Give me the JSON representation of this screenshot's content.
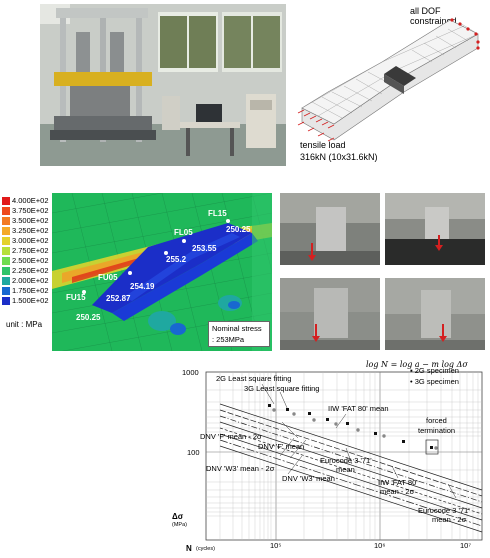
{
  "mesh_panel": {
    "top_label": "all DOF constrained",
    "load_label": "tensile load",
    "load_value": "316kN (10x31.6kN)"
  },
  "contour": {
    "legend": [
      "4.000E+02",
      "3.750E+02",
      "3.500E+02",
      "3.250E+02",
      "3.000E+02",
      "2.750E+02",
      "2.500E+02",
      "2.250E+02",
      "2.000E+02",
      "1.750E+02",
      "1.500E+02"
    ],
    "legend_colors": [
      "#e11a1a",
      "#ee4a1c",
      "#f27a22",
      "#f4a928",
      "#e3d12c",
      "#b7e03a",
      "#6fdc50",
      "#2fc46a",
      "#1fa8a0",
      "#1868d0",
      "#1b2ec8"
    ],
    "unit": "unit : MPa",
    "points": [
      {
        "id": "FL15",
        "value": "250.25"
      },
      {
        "id": "FL05",
        "value": "253.55"
      },
      {
        "id": "center",
        "value": "255.2"
      },
      {
        "id": "FU05",
        "value": "254.19"
      },
      {
        "id": "FU05_b",
        "value": "252.87"
      },
      {
        "id": "FU15",
        "value": "250.25"
      }
    ],
    "point_labels": {
      "fl15": "FL15",
      "fl05": "FL05",
      "fu05": "FU05",
      "fu15": "FU15"
    },
    "nominal_line1": "Nominal stress",
    "nominal_line2": ": 253MPa"
  },
  "sn_chart": {
    "formula": "log N = log a − m log Δσ",
    "legend": [
      {
        "symbol": "▪",
        "label": "2G specimen"
      },
      {
        "symbol": "•",
        "label": "3G specimen"
      }
    ],
    "ylabel": "Δσ",
    "ylabel_unit": "(MPa)",
    "xlabel": "N",
    "xlabel_unit": "(cycles)",
    "yticks": [
      "1000",
      "100"
    ],
    "xticks": [
      "10⁵",
      "10⁶",
      "10⁷"
    ],
    "annotations": {
      "ls2g": "2G Least square fitting",
      "ls3g": "3G Least square fitting",
      "iiw80": "IIW 'FAT 80' mean",
      "forced1": "forced",
      "forced2": "termination",
      "dnvf2s": "DNV 'F' mean - 2σ",
      "dnvf": "DNV 'F' mean",
      "ec71": "Eurocode 3 '71'",
      "ec71b": "mean",
      "dnvw32s": "DNV 'W3' mean - 2σ",
      "dnvw3": "DNV 'W3' mean",
      "iiw802s1": "IIW 'FAT 80'",
      "iiw802s2": "mean - 2σ",
      "ec712s1": "Eurocode 3 '71'",
      "ec712s2": "mean - 2σ"
    }
  }
}
